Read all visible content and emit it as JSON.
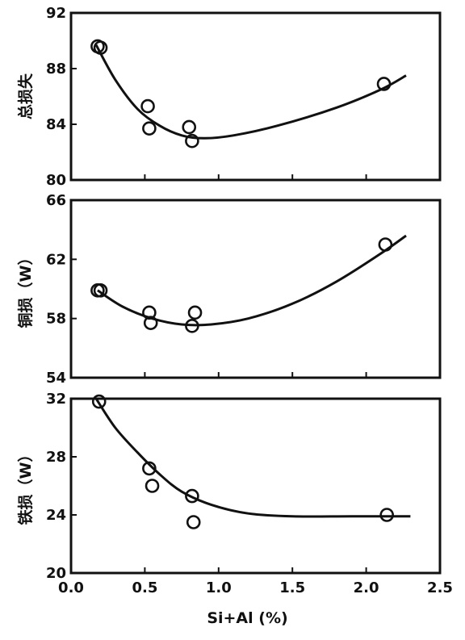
{
  "chart_data": [
    {
      "type": "scatter",
      "ylabel": "总损失",
      "ylim": [
        80,
        92
      ],
      "yticks": [
        "80",
        "84",
        "88",
        "92"
      ],
      "xlim": [
        0.0,
        2.5
      ],
      "points": [
        [
          0.18,
          89.6
        ],
        [
          0.2,
          89.5
        ],
        [
          0.52,
          85.3
        ],
        [
          0.53,
          83.7
        ],
        [
          0.8,
          83.8
        ],
        [
          0.82,
          82.8
        ],
        [
          2.12,
          86.9
        ]
      ],
      "fit_curve": [
        [
          0.17,
          89.7
        ],
        [
          0.3,
          87.2
        ],
        [
          0.45,
          85.1
        ],
        [
          0.6,
          83.9
        ],
        [
          0.75,
          83.2
        ],
        [
          0.9,
          83.0
        ],
        [
          1.1,
          83.2
        ],
        [
          1.4,
          83.9
        ],
        [
          1.8,
          85.2
        ],
        [
          2.1,
          86.5
        ],
        [
          2.27,
          87.5
        ]
      ]
    },
    {
      "type": "scatter",
      "ylabel": "铜损（W）",
      "ylim": [
        54,
        66
      ],
      "yticks": [
        "54",
        "58",
        "62",
        "66"
      ],
      "xlim": [
        0.0,
        2.5
      ],
      "points": [
        [
          0.18,
          59.9
        ],
        [
          0.2,
          59.9
        ],
        [
          0.53,
          58.4
        ],
        [
          0.54,
          57.7
        ],
        [
          0.82,
          57.5
        ],
        [
          0.84,
          58.4
        ],
        [
          2.13,
          63.0
        ]
      ],
      "fit_curve": [
        [
          0.18,
          59.9
        ],
        [
          0.35,
          58.8
        ],
        [
          0.55,
          58.0
        ],
        [
          0.75,
          57.6
        ],
        [
          0.95,
          57.6
        ],
        [
          1.2,
          58.0
        ],
        [
          1.5,
          59.0
        ],
        [
          1.8,
          60.5
        ],
        [
          2.1,
          62.4
        ],
        [
          2.27,
          63.6
        ]
      ]
    },
    {
      "type": "scatter",
      "ylabel": "铁损（W）",
      "xlabel": "Si+Al (%)",
      "ylim": [
        20,
        32
      ],
      "yticks": [
        "20",
        "24",
        "28",
        "32"
      ],
      "xlim": [
        0.0,
        2.5
      ],
      "xticks": [
        "0.0",
        "0.5",
        "1.0",
        "1.5",
        "2.0",
        "2.5"
      ],
      "points": [
        [
          0.19,
          31.8
        ],
        [
          0.53,
          27.2
        ],
        [
          0.55,
          26.0
        ],
        [
          0.82,
          25.3
        ],
        [
          0.83,
          23.5
        ],
        [
          2.14,
          24.0
        ]
      ],
      "fit_curve": [
        [
          0.17,
          32.0
        ],
        [
          0.3,
          30.0
        ],
        [
          0.45,
          28.3
        ],
        [
          0.6,
          26.8
        ],
        [
          0.75,
          25.6
        ],
        [
          0.95,
          24.7
        ],
        [
          1.2,
          24.1
        ],
        [
          1.5,
          23.9
        ],
        [
          1.9,
          23.9
        ],
        [
          2.3,
          23.9
        ]
      ]
    }
  ]
}
